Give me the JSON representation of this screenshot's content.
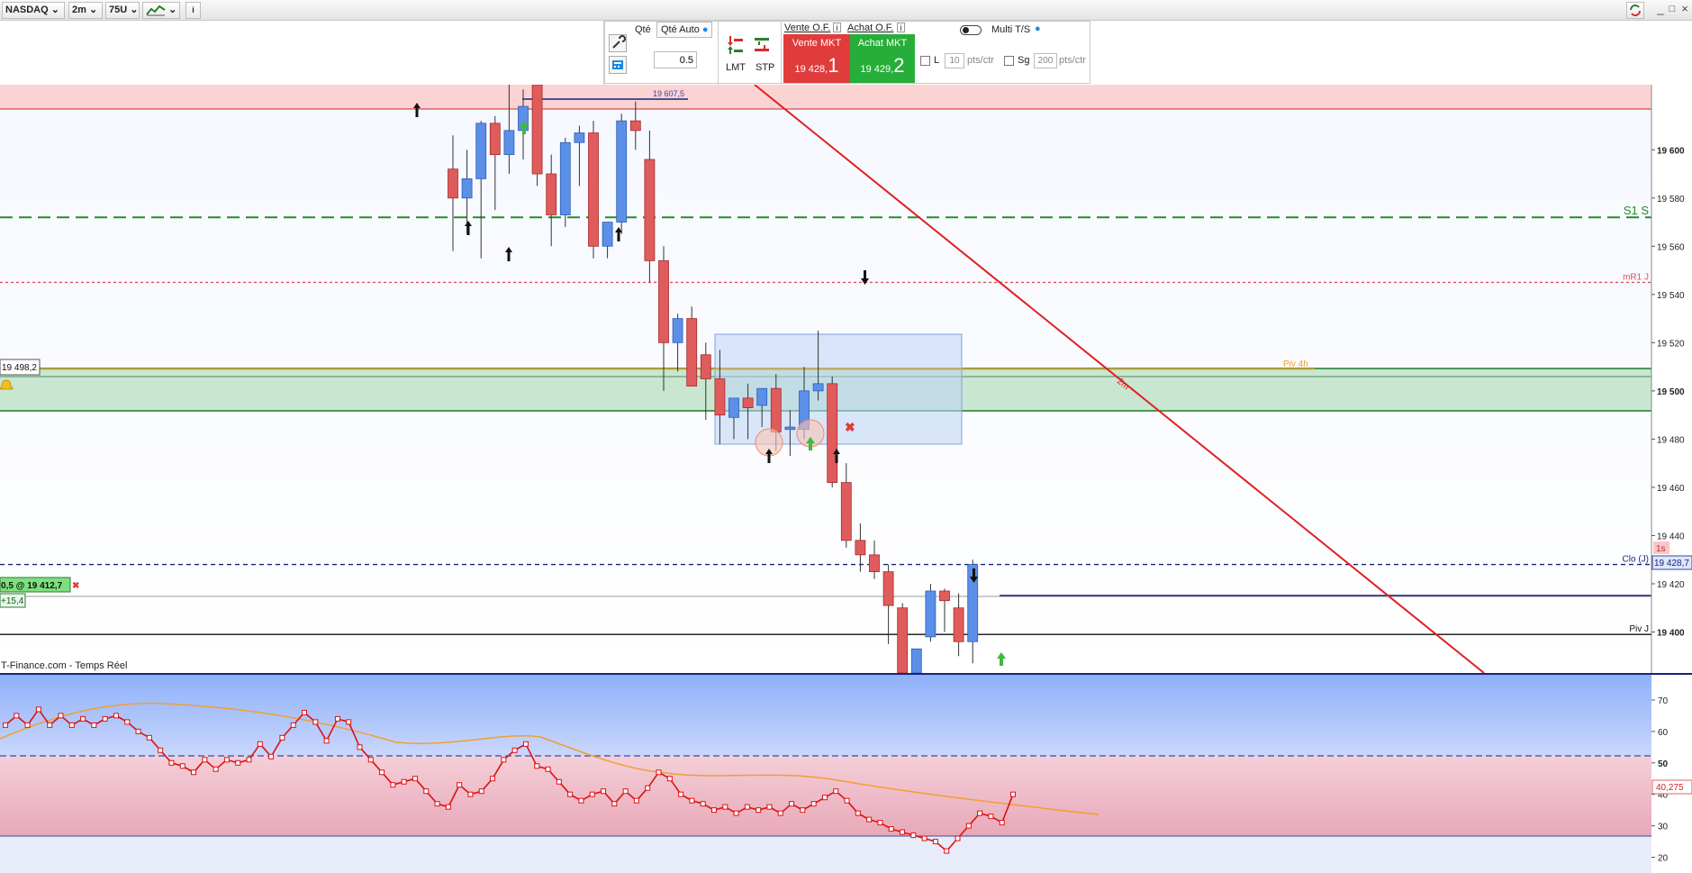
{
  "toolbar": {
    "symbol": "NASDAQ",
    "timeframe": "2m",
    "units": "75U"
  },
  "order_panel": {
    "qty_label": "Qté",
    "qty_auto_label": "Qté Auto",
    "qty_value": "0.5",
    "lmt_label": "LMT",
    "stp_label": "STP",
    "sell_of_label": "Vente O.F.",
    "buy_of_label": "Achat O.F.",
    "sell_mkt_label": "Vente MKT",
    "sell_price_main": "19 428,",
    "sell_price_digit": "1",
    "buy_mkt_label": "Achat MKT",
    "buy_price_main": "19 429,",
    "buy_price_digit": "2",
    "multi_ts_label": "Multi T/S",
    "l_label": "L",
    "l_value": "10",
    "l_unit": "pts/ctr",
    "sg_label": "Sg",
    "sg_value": "200",
    "sg_unit": "pts/ctr",
    "colors": {
      "sell": "#e03c3c",
      "buy": "#27ae3a"
    }
  },
  "chart_data": [
    {
      "type": "candlestick",
      "ylim": [
        19383,
        19627
      ],
      "y_ticks": [
        "19 600",
        "19 580",
        "19 560",
        "19 540",
        "19 520",
        "19 500",
        "19 480",
        "19 460",
        "19 440",
        "19 420",
        "19 400"
      ],
      "candles": [
        {
          "o": 19592,
          "h": 19606,
          "l": 19558,
          "c": 19580
        },
        {
          "o": 19580,
          "h": 19600,
          "l": 19565,
          "c": 19588
        },
        {
          "o": 19588,
          "h": 19612,
          "l": 19555,
          "c": 19611
        },
        {
          "o": 19611,
          "h": 19614,
          "l": 19575,
          "c": 19598
        },
        {
          "o": 19598,
          "h": 19630,
          "l": 19590,
          "c": 19608
        },
        {
          "o": 19608,
          "h": 19625,
          "l": 19596,
          "c": 19618
        },
        {
          "o": 19630,
          "h": 19650,
          "l": 19585,
          "c": 19590
        },
        {
          "o": 19590,
          "h": 19598,
          "l": 19560,
          "c": 19573
        },
        {
          "o": 19573,
          "h": 19605,
          "l": 19568,
          "c": 19603
        },
        {
          "o": 19603,
          "h": 19610,
          "l": 19585,
          "c": 19607
        },
        {
          "o": 19607,
          "h": 19612,
          "l": 19555,
          "c": 19560
        },
        {
          "o": 19560,
          "h": 19570,
          "l": 19555,
          "c": 19570
        },
        {
          "o": 19570,
          "h": 19615,
          "l": 19565,
          "c": 19612
        },
        {
          "o": 19612,
          "h": 19620,
          "l": 19600,
          "c": 19608
        },
        {
          "o": 19596,
          "h": 19608,
          "l": 19545,
          "c": 19554
        },
        {
          "o": 19554,
          "h": 19560,
          "l": 19500,
          "c": 19520
        },
        {
          "o": 19520,
          "h": 19532,
          "l": 19508,
          "c": 19530
        },
        {
          "o": 19530,
          "h": 19535,
          "l": 19503,
          "c": 19502
        },
        {
          "o": 19515,
          "h": 19520,
          "l": 19488,
          "c": 19505
        },
        {
          "o": 19505,
          "h": 19517,
          "l": 19478,
          "c": 19490
        },
        {
          "o": 19489,
          "h": 19497,
          "l": 19480,
          "c": 19497
        },
        {
          "o": 19497,
          "h": 19503,
          "l": 19480,
          "c": 19493
        },
        {
          "o": 19494,
          "h": 19500,
          "l": 19485,
          "c": 19501
        },
        {
          "o": 19501,
          "h": 19507,
          "l": 19475,
          "c": 19483
        },
        {
          "o": 19484,
          "h": 19492,
          "l": 19473,
          "c": 19485
        },
        {
          "o": 19484,
          "h": 19510,
          "l": 19480,
          "c": 19500
        },
        {
          "o": 19500,
          "h": 19525,
          "l": 19496,
          "c": 19503
        },
        {
          "o": 19503,
          "h": 19506,
          "l": 19460,
          "c": 19462
        },
        {
          "o": 19462,
          "h": 19470,
          "l": 19435,
          "c": 19438
        },
        {
          "o": 19438,
          "h": 19445,
          "l": 19425,
          "c": 19432
        },
        {
          "o": 19432,
          "h": 19438,
          "l": 19422,
          "c": 19425
        },
        {
          "o": 19425,
          "h": 19428,
          "l": 19395,
          "c": 19411
        },
        {
          "o": 19410,
          "h": 19412,
          "l": 19370,
          "c": 19380
        },
        {
          "o": 19382,
          "h": 19392,
          "l": 19373,
          "c": 19393
        },
        {
          "o": 19398,
          "h": 19420,
          "l": 19396,
          "c": 19417
        },
        {
          "o": 19417,
          "h": 19418,
          "l": 19400,
          "c": 19413
        },
        {
          "o": 19410,
          "h": 19416,
          "l": 19390,
          "c": 19396
        },
        {
          "o": 19396,
          "h": 19430,
          "l": 19387,
          "c": 19428
        }
      ],
      "levels": [
        {
          "label": "S1 S",
          "value": 19572,
          "color": "#2a8a2a"
        },
        {
          "label": "mR1 J",
          "value": 19545,
          "color": "#e05050"
        },
        {
          "label": "Piv 4h",
          "value": 19509,
          "color": "#f2a020"
        },
        {
          "label": "Clo (J)",
          "value": 19428,
          "color": "#1a237e"
        },
        {
          "label": "Piv J",
          "value": 19399,
          "color": "#111111"
        }
      ],
      "price_tag_last": "19 428,7",
      "price_tag_last_badge": "1s",
      "alert_label": "19 498,2",
      "position_label": "0,5 @ 19 412,7",
      "position_pl": "+15,4",
      "box_high_label": "19 607,5",
      "trendline_label": "2m",
      "source_label": "T-Finance.com - Temps Réel"
    },
    {
      "type": "line",
      "ylim": [
        15,
        78
      ],
      "y_ticks": [
        "70",
        "60",
        "50",
        "40",
        "30",
        "20"
      ],
      "guide_level": 50,
      "series": [
        {
          "values": [
            62,
            65,
            62,
            67,
            62,
            65,
            62,
            64,
            62,
            64,
            65,
            63,
            60,
            58,
            54,
            50,
            49,
            47,
            51,
            48,
            51,
            50,
            51,
            56,
            52,
            58,
            62,
            66,
            63,
            57,
            64,
            63,
            55,
            51,
            47,
            43,
            44,
            45,
            41,
            37,
            36,
            43,
            40,
            41,
            45,
            51,
            54,
            56,
            49,
            48,
            44,
            40,
            38,
            40,
            41,
            37,
            41,
            38,
            42,
            47,
            45,
            40,
            38,
            37,
            35,
            36,
            34,
            36,
            35,
            36,
            34,
            37,
            35,
            37,
            39,
            41,
            38,
            34,
            32,
            31,
            29,
            28,
            27,
            26,
            25,
            22,
            26,
            30,
            34,
            33,
            31,
            40
          ]
        }
      ],
      "value_tag": "40,275"
    }
  ]
}
